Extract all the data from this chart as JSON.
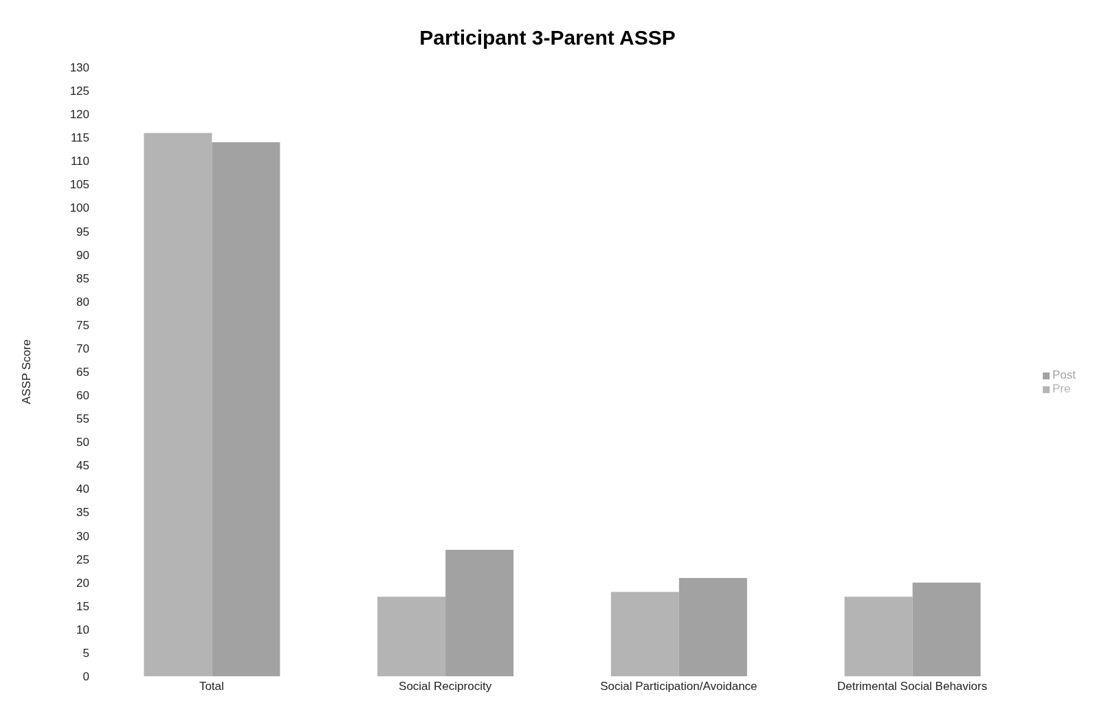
{
  "chart_data": {
    "type": "bar",
    "title": "Participant 3-Parent ASSP",
    "ylabel": "ASSP Score",
    "categories": [
      "Total",
      "Social Reciprocity",
      "Social Participation/Avoidance",
      "Detrimental Social Behaviors"
    ],
    "series": [
      {
        "name": "Pre",
        "color": "#b4b4b4",
        "values": [
          116,
          17,
          18,
          17
        ]
      },
      {
        "name": "Post",
        "color": "#a2a2a2",
        "values": [
          114,
          27,
          21,
          20
        ]
      }
    ],
    "ylim": [
      0,
      130
    ],
    "yticks": [
      0,
      5,
      10,
      15,
      20,
      25,
      30,
      35,
      40,
      45,
      50,
      55,
      60,
      65,
      70,
      75,
      80,
      85,
      90,
      95,
      100,
      105,
      110,
      115,
      120,
      125,
      130
    ],
    "grid": false,
    "legend": "right"
  }
}
